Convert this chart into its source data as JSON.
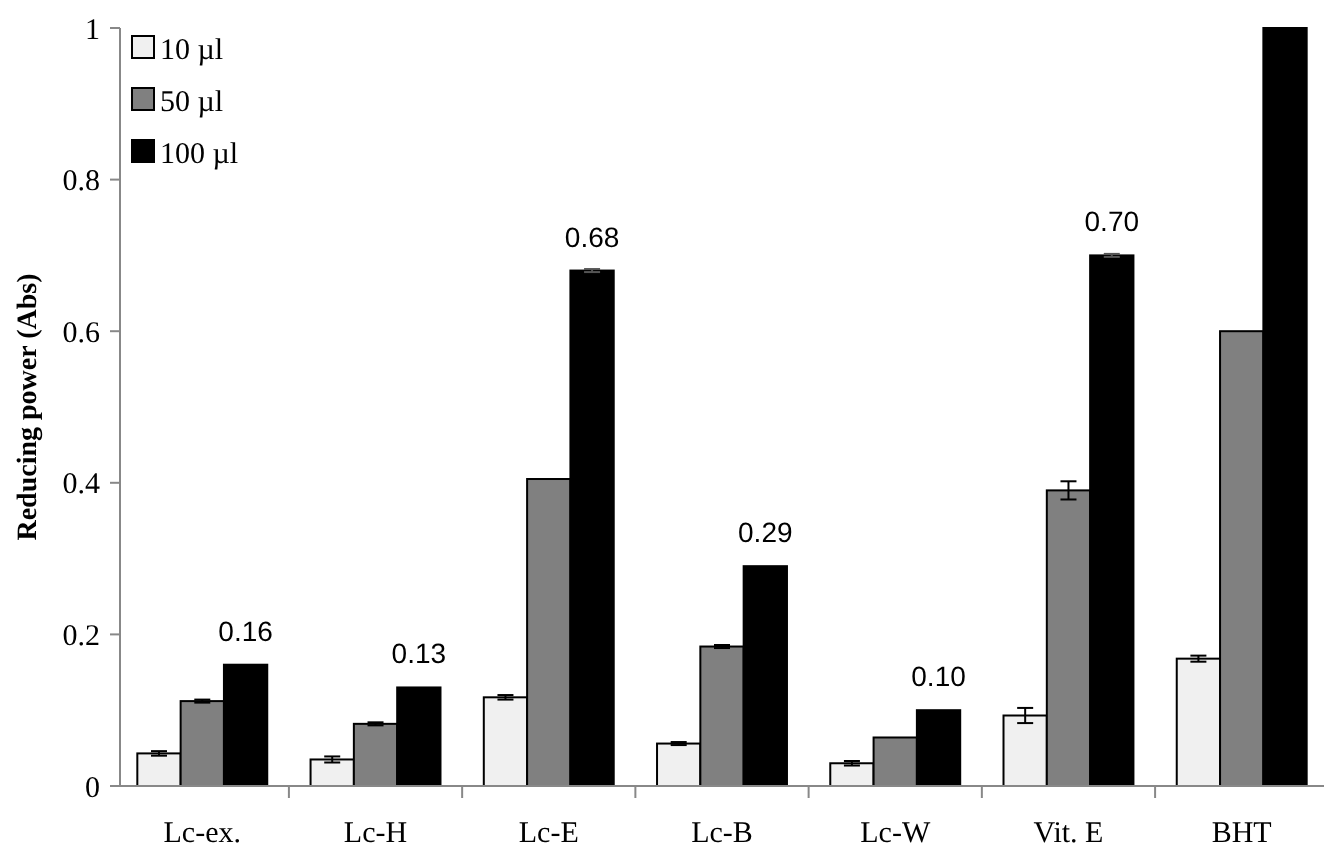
{
  "chart_data": {
    "type": "bar",
    "ylabel": "Reducing power (Abs)",
    "categories": [
      "Lc-ex.",
      "Lc-H",
      "Lc-E",
      "Lc-B",
      "Lc-W",
      "Vit. E",
      "BHT"
    ],
    "series": [
      {
        "name": "10 µl",
        "color": "#f0f0f0",
        "values": [
          0.043,
          0.035,
          0.117,
          0.056,
          0.03,
          0.093,
          0.168
        ],
        "errors": [
          0.003,
          0.004,
          0.003,
          0.002,
          0.003,
          0.01,
          0.004
        ]
      },
      {
        "name": "50 µl",
        "color": "#808080",
        "values": [
          0.112,
          0.082,
          0.405,
          0.184,
          0.064,
          0.39,
          0.6
        ],
        "errors": [
          0.002,
          0.002,
          null,
          0.002,
          null,
          0.012,
          null
        ]
      },
      {
        "name": "100 µl",
        "color": "#000000",
        "values": [
          0.16,
          0.13,
          0.68,
          0.29,
          0.1,
          0.7,
          1
        ],
        "errors": [
          null,
          null,
          0.002,
          null,
          null,
          0.002,
          null
        ],
        "value_labels": [
          "0.16",
          "0.13",
          "0.68",
          "0.29",
          "0.10",
          "0.70",
          null
        ]
      }
    ],
    "ylim": [
      0,
      1
    ],
    "yticks": [
      0,
      0.2,
      0.4,
      0.6,
      0.8,
      1
    ],
    "grid": false,
    "legend": "top left"
  }
}
